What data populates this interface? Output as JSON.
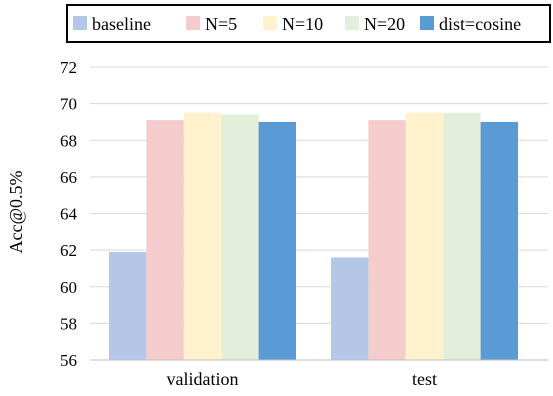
{
  "chart_data": {
    "type": "bar",
    "title": "",
    "xlabel": "",
    "ylabel": "Acc@0.5%",
    "ylim": [
      56,
      72
    ],
    "yticks": [
      56,
      58,
      60,
      62,
      64,
      66,
      68,
      70,
      72
    ],
    "grid": true,
    "legend_position": "top",
    "categories": [
      "validation",
      "test"
    ],
    "series": [
      {
        "name": "baseline",
        "color": "#b4c7e7",
        "values": [
          61.9,
          61.6
        ]
      },
      {
        "name": "N=5",
        "color": "#f4cccc",
        "values": [
          69.1,
          69.1
        ]
      },
      {
        "name": "N=10",
        "color": "#fff2cc",
        "values": [
          69.5,
          69.5
        ]
      },
      {
        "name": "N=20",
        "color": "#e2efda",
        "values": [
          69.4,
          69.5
        ]
      },
      {
        "name": "dist=cosine",
        "color": "#5b9bd5",
        "values": [
          69.0,
          69.0
        ]
      }
    ]
  }
}
